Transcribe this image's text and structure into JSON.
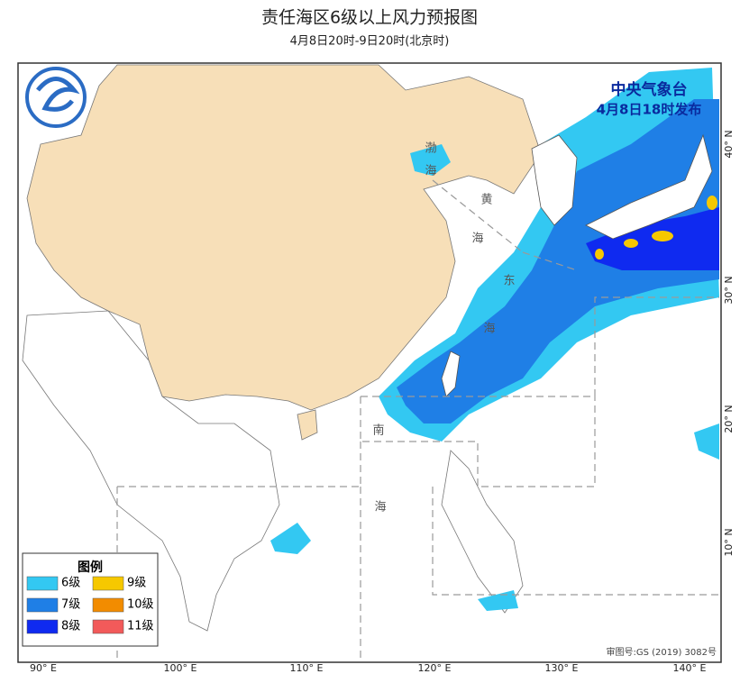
{
  "header": {
    "title": "责任海区6级以上风力预报图",
    "subtitle": "4月8日20时-9日20时(北京时)"
  },
  "issuer": {
    "name": "中央气象台",
    "time": "4月8日18时发布"
  },
  "legend": {
    "title": "图例",
    "items": [
      {
        "label": "6级",
        "color": "#33c8f2"
      },
      {
        "label": "7级",
        "color": "#1f7fe6"
      },
      {
        "label": "8级",
        "color": "#0f2af0"
      },
      {
        "label": "9级",
        "color": "#f6c800"
      },
      {
        "label": "10级",
        "color": "#f28c00"
      },
      {
        "label": "11级",
        "color": "#f25a5a"
      }
    ]
  },
  "longitude_labels": [
    "90° E",
    "100° E",
    "110° E",
    "120° E",
    "130° E",
    "140° E"
  ],
  "latitude_labels": [
    "40° N",
    "30° N",
    "20° N",
    "10° N"
  ],
  "sea_labels": {
    "bohai": [
      "渤",
      "海"
    ],
    "huanghai": [
      "黄",
      "海"
    ],
    "donghai": [
      "东",
      "海"
    ],
    "nanhai": [
      "南",
      "海"
    ]
  },
  "approval": "审图号:GS (2019) 3082号"
}
